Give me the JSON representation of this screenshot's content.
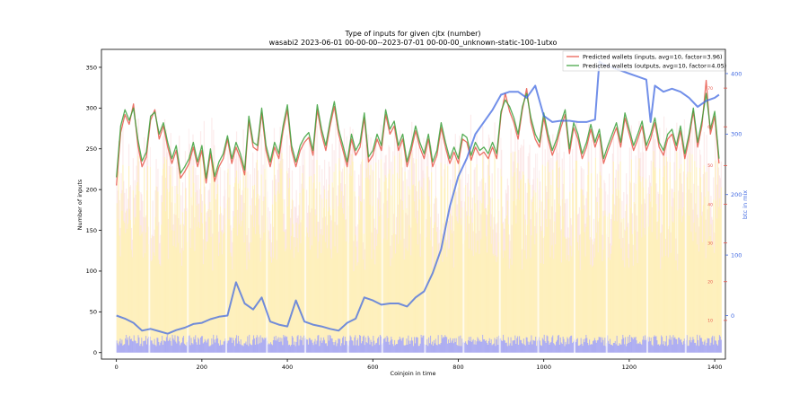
{
  "chart_data": {
    "type": "line",
    "title": "Type of inputs for given cjtx (number)",
    "subtitle": "wasabi2 2023-06-01 00-00-00--2023-07-01 00-00-00_unknown-static-100-1utxo",
    "xlabel": "Coinjoin in time",
    "ylabel": "Number of inputs",
    "y2label": "",
    "y3label": "btc in mix",
    "xlim": [
      -35,
      1425
    ],
    "ylim": [
      -8,
      372
    ],
    "y2lim": [
      0,
      80
    ],
    "y3lim": [
      -72,
      440
    ],
    "x_ticks": [
      0,
      200,
      400,
      600,
      800,
      1000,
      1200,
      1400
    ],
    "y_ticks": [
      0,
      50,
      100,
      150,
      200,
      250,
      300,
      350
    ],
    "y2_ticks": [
      10,
      20,
      30,
      40,
      50,
      60,
      70
    ],
    "y3_ticks": [
      0,
      100,
      200,
      300,
      400
    ],
    "legend_position": "upper right",
    "series": [
      {
        "name": "Predicted wallets (inputs, avg=10, factor=3.96)",
        "color": "#e8574a",
        "x": [
          0,
          10,
          20,
          30,
          40,
          50,
          60,
          70,
          80,
          90,
          100,
          110,
          120,
          130,
          140,
          150,
          160,
          170,
          180,
          190,
          200,
          210,
          220,
          230,
          240,
          250,
          260,
          270,
          280,
          290,
          300,
          310,
          320,
          330,
          340,
          350,
          360,
          370,
          380,
          390,
          400,
          410,
          420,
          430,
          440,
          450,
          460,
          470,
          480,
          490,
          500,
          510,
          520,
          530,
          540,
          550,
          560,
          570,
          580,
          590,
          600,
          610,
          620,
          630,
          640,
          650,
          660,
          670,
          680,
          690,
          700,
          710,
          720,
          730,
          740,
          750,
          760,
          770,
          780,
          790,
          800,
          810,
          820,
          830,
          840,
          850,
          860,
          870,
          880,
          890,
          900,
          910,
          920,
          930,
          940,
          950,
          960,
          970,
          980,
          990,
          1000,
          1010,
          1020,
          1030,
          1040,
          1050,
          1060,
          1070,
          1080,
          1090,
          1100,
          1110,
          1120,
          1130,
          1140,
          1150,
          1160,
          1170,
          1180,
          1190,
          1200,
          1210,
          1220,
          1230,
          1240,
          1250,
          1260,
          1270,
          1280,
          1290,
          1300,
          1310,
          1320,
          1330,
          1340,
          1350,
          1360,
          1370,
          1380,
          1390,
          1400,
          1410
        ],
        "values": [
          205,
          270,
          292,
          280,
          305,
          255,
          228,
          240,
          285,
          298,
          262,
          278,
          252,
          232,
          248,
          214,
          222,
          232,
          252,
          228,
          248,
          208,
          244,
          210,
          228,
          238,
          262,
          232,
          252,
          238,
          218,
          285,
          252,
          248,
          294,
          248,
          228,
          252,
          238,
          272,
          298,
          248,
          228,
          248,
          258,
          264,
          242,
          298,
          268,
          248,
          278,
          302,
          268,
          248,
          228,
          262,
          242,
          252,
          288,
          234,
          242,
          262,
          248,
          292,
          268,
          278,
          248,
          262,
          228,
          248,
          272,
          252,
          238,
          262,
          228,
          242,
          276,
          252,
          232,
          246,
          232,
          262,
          258,
          236,
          252,
          242,
          246,
          238,
          252,
          238,
          292,
          318,
          296,
          282,
          262,
          298,
          324,
          282,
          262,
          252,
          288,
          262,
          242,
          256,
          276,
          292,
          244,
          276,
          262,
          238,
          252,
          274,
          252,
          268,
          232,
          248,
          262,
          276,
          252,
          288,
          268,
          248,
          262,
          278,
          248,
          262,
          282,
          252,
          242,
          262,
          268,
          248,
          272,
          238,
          262,
          296,
          252,
          278,
          334,
          268,
          290,
          232
        ]
      },
      {
        "name": "Predicted wallets (outputs, avg=10, factor=4.05)",
        "color": "#3aa03a",
        "x": [
          0,
          10,
          20,
          30,
          40,
          50,
          60,
          70,
          80,
          90,
          100,
          110,
          120,
          130,
          140,
          150,
          160,
          170,
          180,
          190,
          200,
          210,
          220,
          230,
          240,
          250,
          260,
          270,
          280,
          290,
          300,
          310,
          320,
          330,
          340,
          350,
          360,
          370,
          380,
          390,
          400,
          410,
          420,
          430,
          440,
          450,
          460,
          470,
          480,
          490,
          500,
          510,
          520,
          530,
          540,
          550,
          560,
          570,
          580,
          590,
          600,
          610,
          620,
          630,
          640,
          650,
          660,
          670,
          680,
          690,
          700,
          710,
          720,
          730,
          740,
          750,
          760,
          770,
          780,
          790,
          800,
          810,
          820,
          830,
          840,
          850,
          860,
          870,
          880,
          890,
          900,
          910,
          920,
          930,
          940,
          950,
          960,
          970,
          980,
          990,
          1000,
          1010,
          1020,
          1030,
          1040,
          1050,
          1060,
          1070,
          1080,
          1090,
          1100,
          1110,
          1120,
          1130,
          1140,
          1150,
          1160,
          1170,
          1180,
          1190,
          1200,
          1210,
          1220,
          1230,
          1240,
          1250,
          1260,
          1270,
          1280,
          1290,
          1300,
          1310,
          1320,
          1330,
          1340,
          1350,
          1360,
          1370,
          1380,
          1390,
          1400,
          1410
        ],
        "values": [
          215,
          278,
          298,
          285,
          300,
          262,
          235,
          246,
          290,
          295,
          268,
          282,
          258,
          238,
          254,
          220,
          228,
          238,
          258,
          234,
          254,
          214,
          250,
          216,
          234,
          244,
          266,
          238,
          258,
          244,
          224,
          290,
          258,
          254,
          300,
          254,
          234,
          258,
          244,
          278,
          304,
          254,
          234,
          254,
          264,
          270,
          248,
          304,
          274,
          254,
          284,
          308,
          274,
          254,
          234,
          268,
          248,
          258,
          294,
          240,
          248,
          268,
          254,
          298,
          274,
          284,
          254,
          268,
          234,
          254,
          278,
          258,
          244,
          268,
          234,
          248,
          282,
          258,
          238,
          252,
          238,
          268,
          264,
          242,
          258,
          248,
          252,
          244,
          258,
          244,
          296,
          310,
          302,
          288,
          268,
          302,
          318,
          288,
          268,
          258,
          294,
          268,
          248,
          262,
          282,
          298,
          250,
          282,
          268,
          244,
          258,
          280,
          258,
          274,
          238,
          254,
          268,
          282,
          258,
          294,
          274,
          254,
          268,
          284,
          254,
          268,
          288,
          258,
          248,
          268,
          274,
          254,
          278,
          244,
          268,
          300,
          258,
          284,
          318,
          274,
          296,
          238
        ]
      },
      {
        "name": "btc in mix",
        "axis": "y3",
        "color": "#4169e1",
        "x": [
          0,
          20,
          40,
          60,
          80,
          100,
          120,
          140,
          160,
          180,
          200,
          220,
          240,
          260,
          280,
          300,
          320,
          340,
          360,
          380,
          400,
          420,
          440,
          460,
          480,
          500,
          520,
          540,
          560,
          580,
          600,
          620,
          640,
          660,
          680,
          700,
          720,
          740,
          760,
          780,
          800,
          820,
          840,
          860,
          880,
          900,
          920,
          940,
          960,
          980,
          1000,
          1020,
          1040,
          1060,
          1080,
          1100,
          1120,
          1130,
          1140,
          1160,
          1180,
          1200,
          1220,
          1240,
          1250,
          1255,
          1260,
          1280,
          1300,
          1320,
          1340,
          1360,
          1380,
          1400,
          1410
        ],
        "values": [
          0,
          -5,
          -12,
          -25,
          -22,
          -26,
          -30,
          -24,
          -20,
          -14,
          -12,
          -6,
          -2,
          0,
          55,
          20,
          10,
          30,
          -10,
          -15,
          -18,
          25,
          -10,
          -15,
          -18,
          -22,
          -25,
          -12,
          -5,
          30,
          25,
          18,
          20,
          20,
          15,
          30,
          40,
          70,
          110,
          180,
          230,
          260,
          300,
          320,
          340,
          365,
          370,
          370,
          360,
          380,
          330,
          320,
          322,
          322,
          320,
          320,
          324,
          420,
          415,
          410,
          405,
          400,
          395,
          390,
          320,
          350,
          380,
          370,
          375,
          370,
          360,
          345,
          355,
          360,
          365
        ]
      }
    ]
  }
}
